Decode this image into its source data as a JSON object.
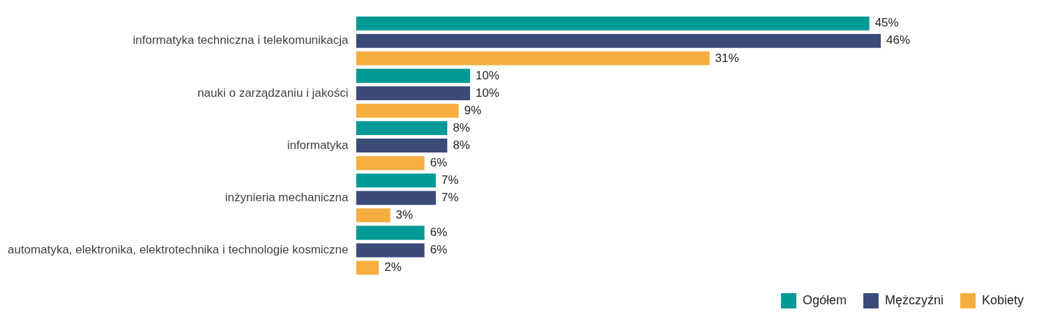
{
  "chart_data": {
    "type": "bar",
    "orientation": "horizontal",
    "categories": [
      "informatyka techniczna i telekomunikacja",
      "nauki o zarządzaniu i jakości",
      "informatyka",
      "inżynieria mechaniczna",
      "automatyka, elektronika, elektrotechnika i technologie kosmiczne"
    ],
    "series": [
      {
        "name": "Ogółem",
        "color": "#009a96",
        "values": [
          45,
          10,
          8,
          7,
          6
        ],
        "value_labels": [
          "45%",
          "10%",
          "8%",
          "7%",
          "6%"
        ]
      },
      {
        "name": "Mężczyźni",
        "color": "#3c4a7a",
        "values": [
          46,
          10,
          8,
          7,
          6
        ],
        "value_labels": [
          "46%",
          "10%",
          "8%",
          "7%",
          "6%"
        ]
      },
      {
        "name": "Kobiety",
        "color": "#f6ae40",
        "values": [
          31,
          9,
          6,
          3,
          2
        ],
        "value_labels": [
          "31%",
          "9%",
          "6%",
          "3%",
          "2%"
        ]
      }
    ],
    "legend": "bottom right"
  }
}
